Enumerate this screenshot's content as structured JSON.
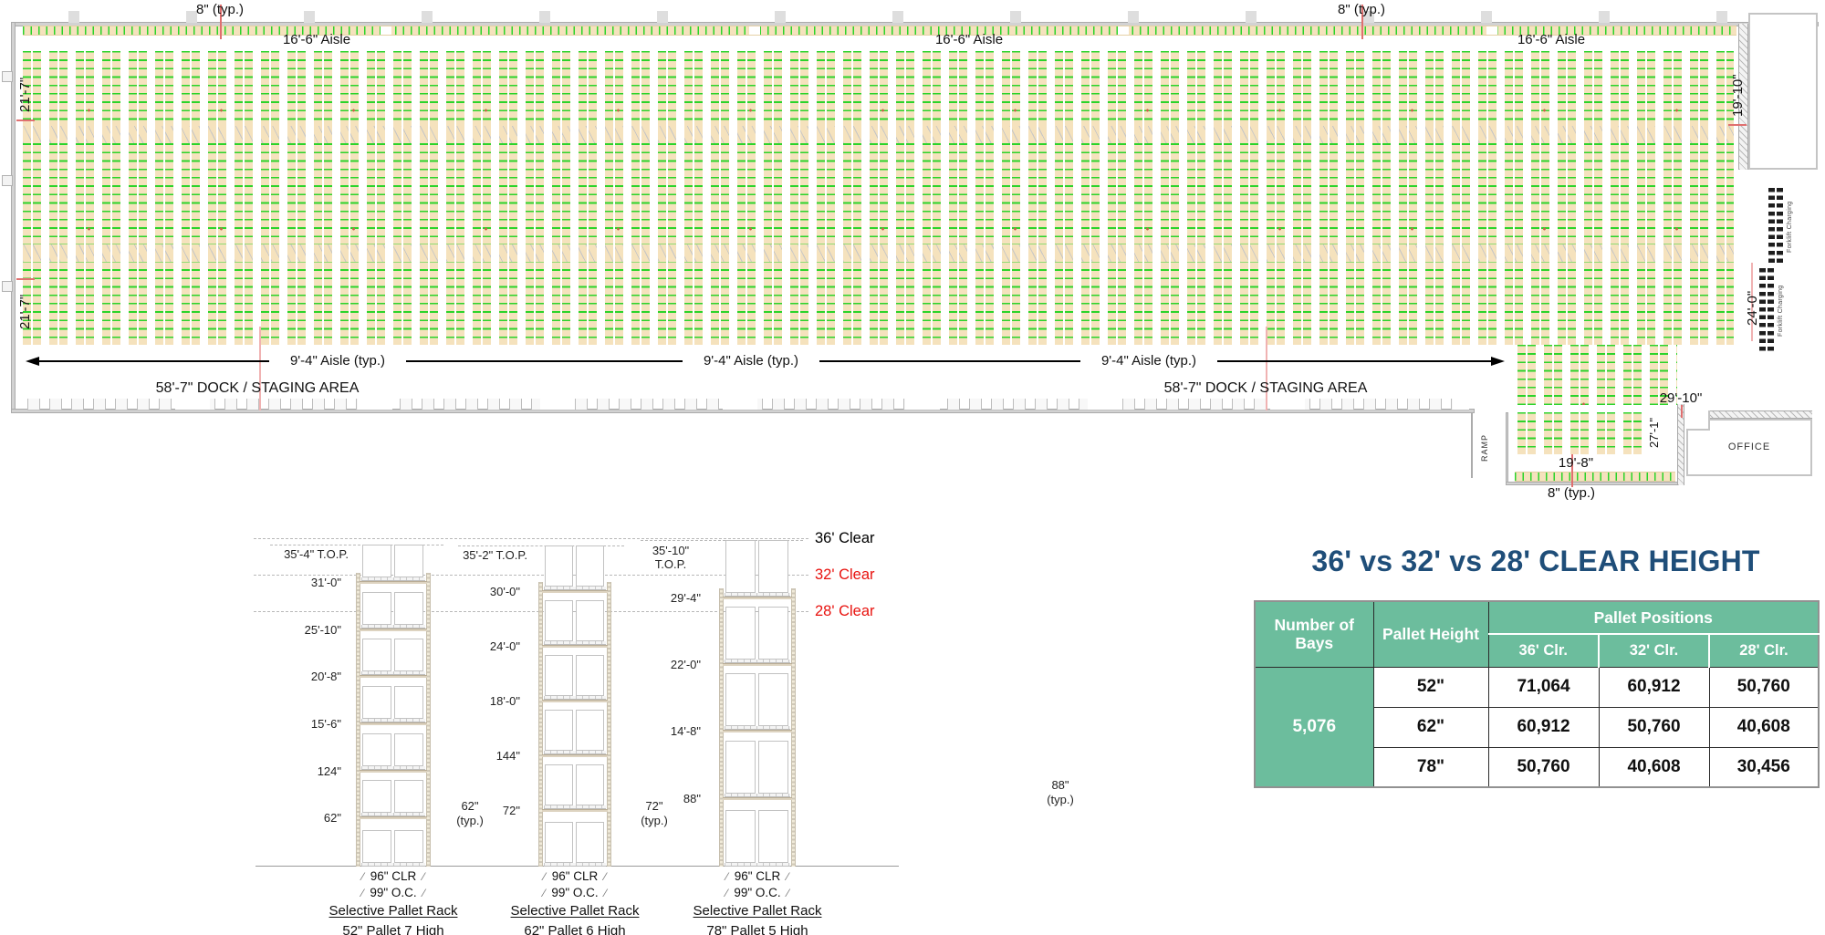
{
  "plan": {
    "labels": {
      "typ8": "8\" (typ.)",
      "aisle166": "16'-6\" Aisle",
      "dim217": "21'-7\"",
      "dim1910": "19'-10\"",
      "dim240": "24'-0\"",
      "aisle94": "9'-4\" Aisle (typ.)",
      "dock": "58'-7\" DOCK / STAGING AREA",
      "dim2910": "29'-10\"",
      "dim271": "27'-1\"",
      "dim198": "19'-8\"",
      "office": "OFFICE",
      "ramp": "RAMP",
      "forklift": "Forklift Charging"
    },
    "colors": {
      "pallet_green": "#2bd42b",
      "rack_tan": "#f5e2bd",
      "wall_gray": "#d2d2d2"
    }
  },
  "elevations": {
    "clear_lines": [
      {
        "label": "36' Clear",
        "color": "#000000"
      },
      {
        "label": "32' Clear",
        "color": "#e8120e"
      },
      {
        "label": "28' Clear",
        "color": "#e8120e"
      }
    ],
    "racks": [
      {
        "top": "35'-4\" T.O.P.",
        "levels": [
          "62\"",
          "124\"",
          "15'-6\"",
          "20'-8\"",
          "25'-10\"",
          "31'-0\""
        ],
        "beam_typ": "62\"\n(typ.)",
        "clr": "96\" CLR",
        "oc": "99\" O.C.",
        "rack_type": "Selective Pallet Rack",
        "config": "52\" Pallet 7 High"
      },
      {
        "top": "35'-2\" T.O.P.",
        "levels": [
          "72\"",
          "144\"",
          "18'-0\"",
          "24'-0\"",
          "30'-0\""
        ],
        "beam_typ": "72\"\n(typ.)",
        "clr": "96\" CLR",
        "oc": "99\" O.C.",
        "rack_type": "Selective Pallet Rack",
        "config": "62\" Pallet 6 High"
      },
      {
        "top": "35'-10\"\nT.O.P.",
        "levels": [
          "88\"",
          "14'-8\"",
          "22'-0\"",
          "29'-4\""
        ],
        "beam_typ": "88\"\n(typ.)",
        "clr": "96\" CLR",
        "oc": "99\" O.C.",
        "rack_type": "Selective Pallet Rack",
        "config": "78\" Pallet 5 High"
      }
    ]
  },
  "comparison": {
    "title": "36' vs 32' vs 28' CLEAR HEIGHT",
    "title_color": "#1f4e79",
    "header_bg": "#6cbd9d",
    "table": {
      "col_bays": "Number of Bays",
      "col_height": "Pallet Height",
      "group": "Pallet Positions",
      "cols": [
        "36' Clr.",
        "32' Clr.",
        "28' Clr."
      ],
      "bays": "5,076",
      "rows": [
        {
          "height": "52\"",
          "positions": [
            "71,064",
            "60,912",
            "50,760"
          ]
        },
        {
          "height": "62\"",
          "positions": [
            "60,912",
            "50,760",
            "40,608"
          ]
        },
        {
          "height": "78\"",
          "positions": [
            "50,760",
            "40,608",
            "30,456"
          ]
        }
      ]
    }
  }
}
